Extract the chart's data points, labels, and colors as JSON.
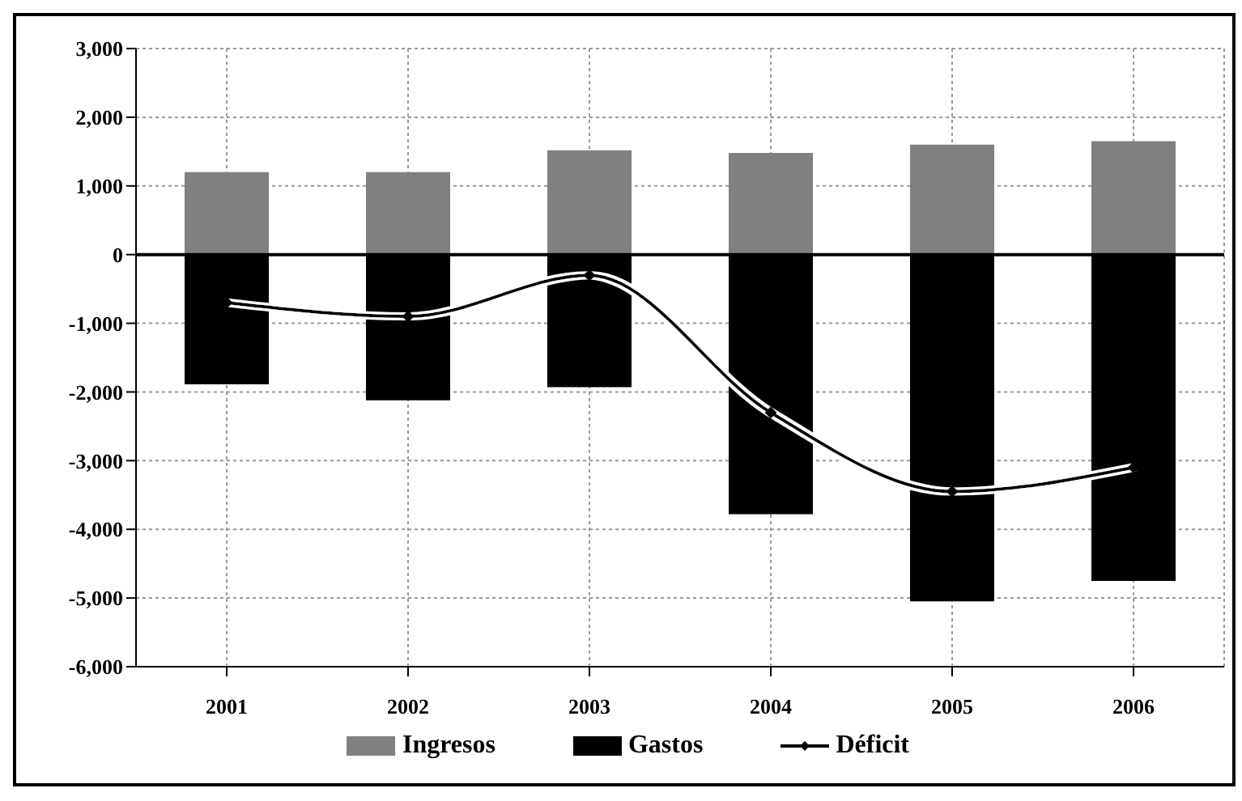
{
  "chart_data": {
    "type": "bar",
    "stacked": true,
    "categories": [
      "2001",
      "2002",
      "2003",
      "2004",
      "2005",
      "2006"
    ],
    "series": [
      {
        "name": "Ingresos",
        "color": "#808080",
        "values": [
          1200,
          1200,
          1520,
          1480,
          1600,
          1650
        ]
      },
      {
        "name": "Gastos",
        "color": "#000000",
        "values": [
          -1890,
          -2120,
          -1930,
          -3780,
          -5050,
          -4750
        ]
      },
      {
        "name": "Déficit",
        "type": "line",
        "color": "#000000",
        "marker": "diamond",
        "values": [
          -700,
          -900,
          -300,
          -2300,
          -3450,
          -3100
        ]
      }
    ],
    "ylim": [
      -6000,
      3000
    ],
    "yticks": [
      {
        "value": -6000,
        "label": "-6,000"
      },
      {
        "value": -5000,
        "label": "-5,000"
      },
      {
        "value": -4000,
        "label": "-4,000"
      },
      {
        "value": -3000,
        "label": "-3,000"
      },
      {
        "value": -2000,
        "label": "-2,000"
      },
      {
        "value": -1000,
        "label": "-1,000"
      },
      0,
      {
        "value": 1000,
        "label": "1,000"
      },
      {
        "value": 2000,
        "label": "2,000"
      },
      {
        "value": 3000,
        "label": "3,000"
      }
    ],
    "grid": true,
    "legend": "bottom"
  }
}
